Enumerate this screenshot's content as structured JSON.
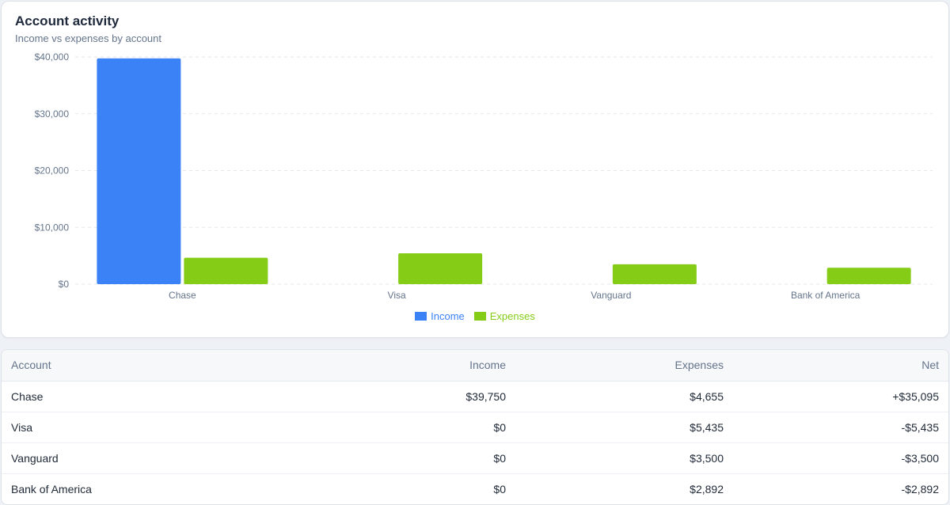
{
  "header": {
    "title": "Account activity",
    "subtitle": "Income vs expenses by account"
  },
  "colors": {
    "income": "#3b82f6",
    "expenses": "#84cc16",
    "grid": "#e5e7eb",
    "tick": "#64748b"
  },
  "chart_data": {
    "type": "bar",
    "categories": [
      "Chase",
      "Visa",
      "Vanguard",
      "Bank of America"
    ],
    "series": [
      {
        "name": "Income",
        "values": [
          39750,
          0,
          0,
          0
        ]
      },
      {
        "name": "Expenses",
        "values": [
          4655,
          5435,
          3500,
          2892
        ]
      }
    ],
    "yticks": [
      "$0",
      "$10,000",
      "$20,000",
      "$30,000",
      "$40,000"
    ],
    "ylim": [
      0,
      40000
    ],
    "grid": true,
    "legend": "bottom-center"
  },
  "table": {
    "headers": [
      "Account",
      "Income",
      "Expenses",
      "Net"
    ],
    "rows": [
      [
        "Chase",
        "$39,750",
        "$4,655",
        "+$35,095"
      ],
      [
        "Visa",
        "$0",
        "$5,435",
        "-$5,435"
      ],
      [
        "Vanguard",
        "$0",
        "$3,500",
        "-$3,500"
      ],
      [
        "Bank of America",
        "$0",
        "$2,892",
        "-$2,892"
      ]
    ]
  }
}
